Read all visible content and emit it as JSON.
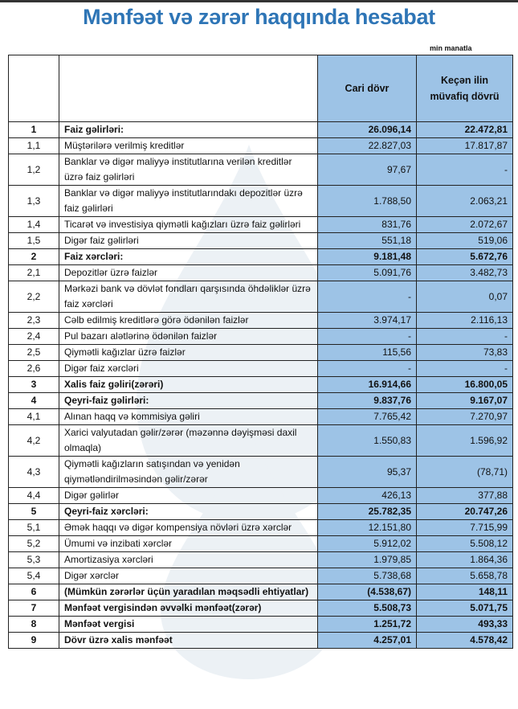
{
  "title": "Mənfəət və zərər haqqında hesabat",
  "unit": "min manatla",
  "header": {
    "col_current": "Cari dövr",
    "col_previous": "Keçən ilin müvafiq dövrü"
  },
  "colors": {
    "title": "#2e75b6",
    "value_fill": "#9dc3e6"
  },
  "rows": [
    {
      "no": "1",
      "label": "Faiz gəlirləri:",
      "current": "26.096,14",
      "previous": "22.472,81",
      "bold": true
    },
    {
      "no": "1,1",
      "label": "Müştərilərə verilmiş kreditlər",
      "current": "22.827,03",
      "previous": "17.817,87"
    },
    {
      "no": "1,2",
      "label": "Banklar və digər maliyyə institutlarına verilən kreditlər üzrə faiz gəlirləri",
      "current": "97,67",
      "previous": "-"
    },
    {
      "no": "1,3",
      "label": "Banklar və digər maliyyə institutlarındakı depozitlər üzrə faiz gəlirləri",
      "current": "1.788,50",
      "previous": "2.063,21"
    },
    {
      "no": "1,4",
      "label": "Ticarət və investisiya qiymətli kağızları üzrə faiz gəlirləri",
      "current": "831,76",
      "previous": "2.072,67"
    },
    {
      "no": "1,5",
      "label": "Digər faiz gəlirləri",
      "current": "551,18",
      "previous": "519,06"
    },
    {
      "no": "2",
      "label": "Faiz xərcləri:",
      "current": "9.181,48",
      "previous": "5.672,76",
      "bold": true
    },
    {
      "no": "2,1",
      "label": "Depozitlər üzrə faizlər",
      "current": "5.091,76",
      "previous": "3.482,73"
    },
    {
      "no": "2,2",
      "label": "Mərkəzi bank və dövlət fondları qarşısında öhdəliklər üzrə faiz xərcləri",
      "current": "-",
      "previous": "0,07"
    },
    {
      "no": "2,3",
      "label": "Cəlb edilmiş kreditlərə görə ödənilən faizlər",
      "current": "3.974,17",
      "previous": "2.116,13"
    },
    {
      "no": "2,4",
      "label": "Pul bazarı alətlərinə ödənilən faizlər",
      "current": "-",
      "previous": "-"
    },
    {
      "no": "2,5",
      "label": "Qiymətli kağızlar üzrə faizlər",
      "current": "115,56",
      "previous": "73,83"
    },
    {
      "no": "2,6",
      "label": "Digər faiz xərcləri",
      "current": "-",
      "previous": "-"
    },
    {
      "no": "3",
      "label": "Xalis faiz gəliri(zərəri)",
      "current": "16.914,66",
      "previous": "16.800,05",
      "bold": true
    },
    {
      "no": "4",
      "label": "Qeyri-faiz gəlirləri:",
      "current": "9.837,76",
      "previous": "9.167,07",
      "bold": true
    },
    {
      "no": "4,1",
      "label": "Alınan haqq və kommisiya gəliri",
      "current": "7.765,42",
      "previous": "7.270,97"
    },
    {
      "no": "4,2",
      "label": "Xarici valyutadan gəlir/zərər (məzənnə dəyişməsi daxil olmaqla)",
      "current": "1.550,83",
      "previous": "1.596,92"
    },
    {
      "no": "4,3",
      "label": "Qiymətli kağızların satışından və yenidən qiymətləndirilməsindən gəlir/zərər",
      "current": "95,37",
      "previous": "(78,71)"
    },
    {
      "no": "4,4",
      "label": "Digər gəlirlər",
      "current": "426,13",
      "previous": "377,88"
    },
    {
      "no": "5",
      "label": "Qeyri-faiz xərcləri:",
      "current": "25.782,35",
      "previous": "20.747,26",
      "bold": true
    },
    {
      "no": "5,1",
      "label": "Əmək haqqı və digər kompensiya növləri üzrə xərclər",
      "current": "12.151,80",
      "previous": "7.715,99"
    },
    {
      "no": "5,2",
      "label": "Ümumi və inzibati xərclər",
      "current": "5.912,02",
      "previous": "5.508,12"
    },
    {
      "no": "5,3",
      "label": "Amortizasiya xərcləri",
      "current": "1.979,85",
      "previous": "1.864,36"
    },
    {
      "no": "5,4",
      "label": "Digər xərclər",
      "current": "5.738,68",
      "previous": "5.658,78"
    },
    {
      "no": "6",
      "label": "(Mümkün zərərlər üçün yaradılan məqsədli ehtiyatlar)",
      "current": "(4.538,67)",
      "previous": "148,11",
      "bold": true
    },
    {
      "no": "7",
      "label": "Mənfəət vergisindən əvvəlki mənfəət(zərər)",
      "current": "5.508,73",
      "previous": "5.071,75",
      "bold": true
    },
    {
      "no": "8",
      "label": "Mənfəət vergisi",
      "current": "1.251,72",
      "previous": "493,33",
      "bold": true
    },
    {
      "no": "9",
      "label": "Dövr üzrə xalis mənfəət",
      "current": "4.257,01",
      "previous": "4.578,42",
      "bold": true
    }
  ]
}
